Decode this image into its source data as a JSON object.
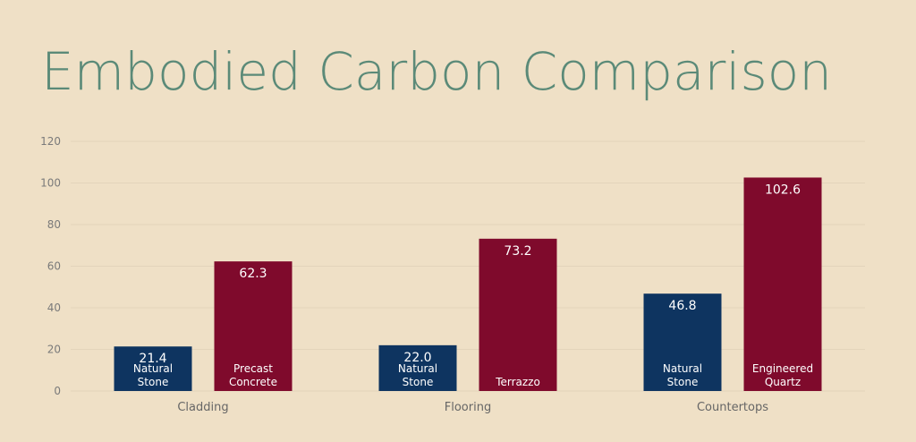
{
  "chart_data": {
    "type": "bar",
    "title": "Embodied Carbon Comparison",
    "categories": [
      "Cladding",
      "Flooring",
      "Countertops"
    ],
    "series": [
      {
        "color": "#0e3460",
        "values": [
          21.4,
          22.0,
          46.8
        ],
        "value_labels": [
          "21.4",
          "22.0",
          "46.8"
        ],
        "bar_labels": [
          "Natural Stone",
          "Natural Stone",
          "Natural Stone"
        ]
      },
      {
        "color": "#7f0a2c",
        "values": [
          62.3,
          73.2,
          102.6
        ],
        "value_labels": [
          "62.3",
          "73.2",
          "102.6"
        ],
        "bar_labels": [
          "Precast Concrete",
          "Terrazzo",
          "Engineered Quartz"
        ]
      }
    ],
    "ylim": [
      0,
      120
    ],
    "yticks": [
      0,
      20,
      40,
      60,
      80,
      100,
      120
    ],
    "grid": true
  }
}
